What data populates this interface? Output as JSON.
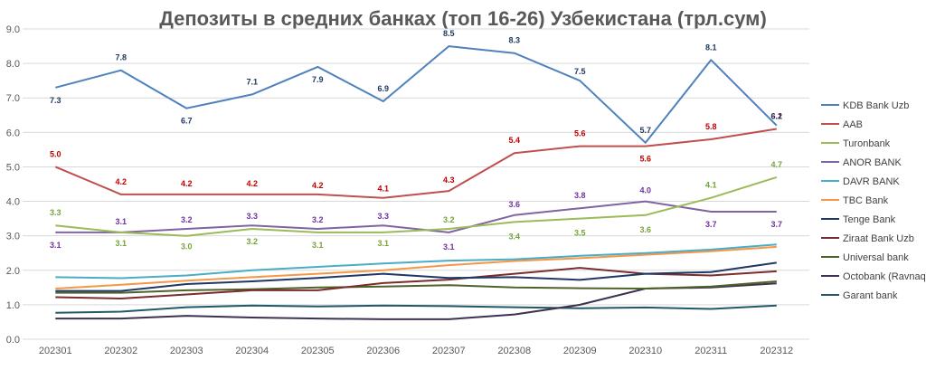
{
  "chart_data": {
    "type": "line",
    "title": "Депозиты в средних банках (топ 16-26) Узбекистана (трл.сум)",
    "xlabel": "",
    "ylabel": "",
    "ylim": [
      0,
      9
    ],
    "y_ticks": [
      "0.0",
      "1.0",
      "2.0",
      "3.0",
      "4.0",
      "5.0",
      "6.0",
      "7.0",
      "8.0",
      "9.0"
    ],
    "grid": true,
    "legend_position": "right",
    "categories": [
      "202301",
      "202302",
      "202303",
      "202304",
      "202305",
      "202306",
      "202307",
      "202308",
      "202309",
      "202310",
      "202311",
      "202312"
    ],
    "series": [
      {
        "name": "KDB Bank Uzb",
        "color": "#4F81BD",
        "label_color": "#1F3864",
        "labeled": true,
        "values": [
          7.3,
          7.8,
          6.7,
          7.1,
          7.9,
          6.9,
          8.5,
          8.3,
          7.5,
          5.7,
          8.1,
          6.2
        ]
      },
      {
        "name": "AAB",
        "color": "#C0504D",
        "label_color": "#C00000",
        "labeled": true,
        "values": [
          5.0,
          4.2,
          4.2,
          4.2,
          4.2,
          4.1,
          4.3,
          5.4,
          5.6,
          5.6,
          5.8,
          6.1
        ]
      },
      {
        "name": "Turonbank",
        "color": "#9BBB59",
        "label_color": "#76A33A",
        "labeled": true,
        "values": [
          3.3,
          3.1,
          3.0,
          3.2,
          3.1,
          3.1,
          3.2,
          3.4,
          3.5,
          3.6,
          4.1,
          4.7
        ]
      },
      {
        "name": "ANOR BANK",
        "color": "#8064A2",
        "label_color": "#7030A0",
        "labeled": true,
        "values": [
          3.1,
          3.1,
          3.2,
          3.3,
          3.2,
          3.3,
          3.1,
          3.6,
          3.8,
          4.0,
          3.7,
          3.7
        ]
      },
      {
        "name": "DAVR BANK",
        "color": "#4BACC6",
        "labeled": false,
        "values": [
          1.8,
          1.77,
          1.85,
          2.0,
          2.1,
          2.2,
          2.28,
          2.32,
          2.42,
          2.5,
          2.6,
          2.75
        ]
      },
      {
        "name": "TBC Bank",
        "color": "#F79646",
        "labeled": false,
        "values": [
          1.47,
          1.58,
          1.7,
          1.8,
          1.9,
          2.0,
          2.15,
          2.27,
          2.35,
          2.45,
          2.55,
          2.68
        ]
      },
      {
        "name": "Tenge Bank",
        "color": "#1F3864",
        "labeled": false,
        "values": [
          1.4,
          1.4,
          1.6,
          1.68,
          1.78,
          1.9,
          1.78,
          1.8,
          1.72,
          1.9,
          1.95,
          2.22
        ]
      },
      {
        "name": "Ziraat Bank Uzb",
        "color": "#7B2C2C",
        "labeled": false,
        "values": [
          1.22,
          1.18,
          1.3,
          1.42,
          1.42,
          1.63,
          1.73,
          1.9,
          2.07,
          1.9,
          1.85,
          1.97
        ]
      },
      {
        "name": "Universal bank",
        "color": "#4F6228",
        "labeled": false,
        "values": [
          1.35,
          1.35,
          1.42,
          1.45,
          1.5,
          1.53,
          1.57,
          1.5,
          1.48,
          1.47,
          1.53,
          1.68
        ]
      },
      {
        "name": "Octobank (Ravnaq)",
        "color": "#3F3151",
        "labeled": false,
        "values": [
          0.6,
          0.6,
          0.68,
          0.63,
          0.6,
          0.58,
          0.58,
          0.72,
          1.0,
          1.47,
          1.5,
          1.62
        ]
      },
      {
        "name": "Garant bank",
        "color": "#215968",
        "labeled": false,
        "values": [
          0.77,
          0.8,
          0.93,
          0.98,
          0.95,
          0.98,
          0.96,
          0.93,
          0.9,
          0.92,
          0.88,
          0.98
        ]
      }
    ]
  }
}
